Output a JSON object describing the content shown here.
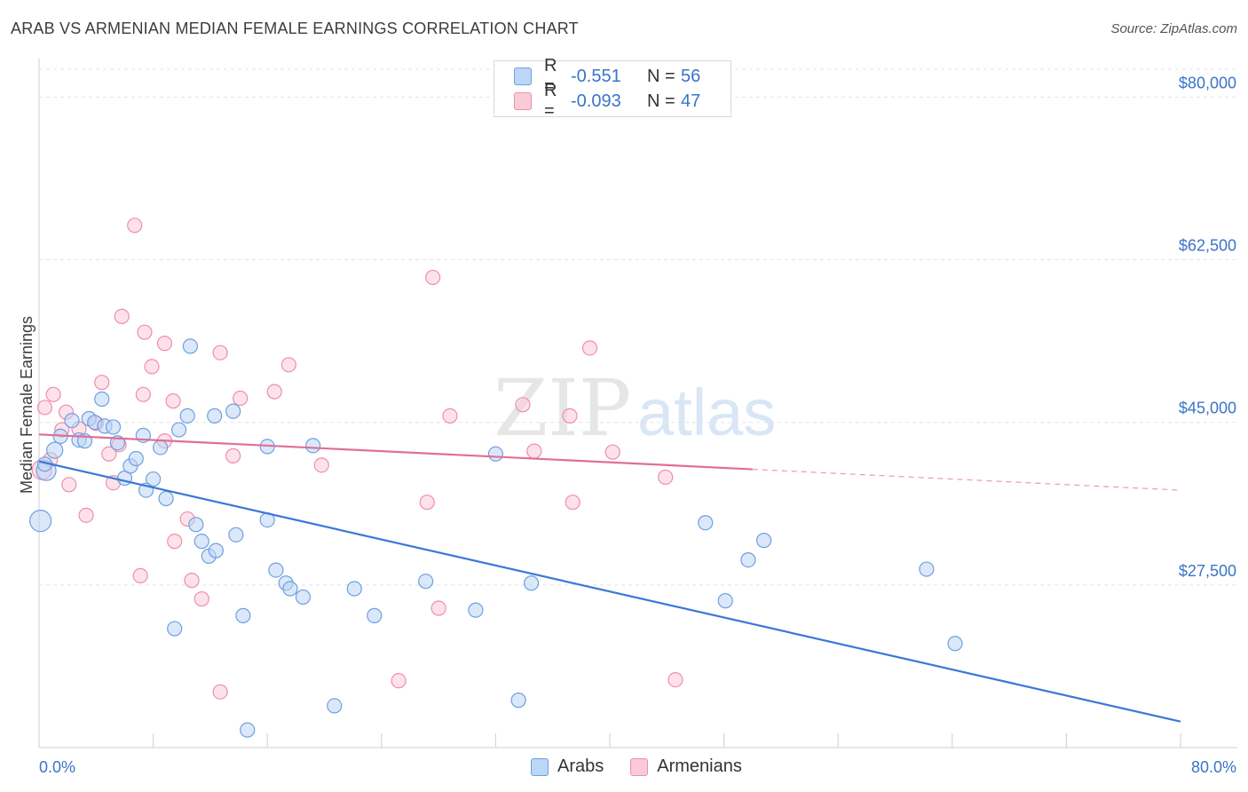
{
  "title": "ARAB VS ARMENIAN MEDIAN FEMALE EARNINGS CORRELATION CHART",
  "source": "Source: ZipAtlas.com",
  "watermark": {
    "zip": "ZIP",
    "atlas": "atlas"
  },
  "legend": {
    "r_label": "R =",
    "n_label": "N =",
    "arabs": {
      "r": "-0.551",
      "n": "56"
    },
    "armenians": {
      "r": "-0.093",
      "n": "47"
    }
  },
  "bottom_legend": {
    "arabs": "Arabs",
    "armenians": "Armenians"
  },
  "colors": {
    "blue_fill": "#bcd6f6",
    "blue_stroke": "#6fa0e0",
    "blue_line": "#3a78d6",
    "pink_fill": "#fbcad8",
    "pink_stroke": "#ee8eab",
    "pink_line": "#e06e98",
    "axis_text": "#3a74c8",
    "grid": "#e3e3e3"
  },
  "chart_data": {
    "type": "scatter",
    "title": "ARAB VS ARMENIAN MEDIAN FEMALE EARNINGS CORRELATION CHART",
    "xlabel": "",
    "ylabel": "Median Female Earnings",
    "xlim": [
      0,
      80
    ],
    "ylim": [
      10000,
      83000
    ],
    "x_tick_labels": [
      "0.0%",
      "80.0%"
    ],
    "y_ticks": [
      {
        "value": 27500,
        "label": "$27,500"
      },
      {
        "value": 45000,
        "label": "$45,000"
      },
      {
        "value": 62500,
        "label": "$62,500"
      },
      {
        "value": 80000,
        "label": "$80,000"
      }
    ],
    "grid": true,
    "series": [
      {
        "name": "Arabs",
        "r": -0.551,
        "n": 56,
        "trend": {
          "x1": 0,
          "y1": 40800,
          "x2": 80,
          "y2": 12800,
          "dashed_from": null
        },
        "points": [
          {
            "x": 0.1,
            "y": 34400,
            "s": 24
          },
          {
            "x": 0.5,
            "y": 39800,
            "s": 22
          },
          {
            "x": 1.1,
            "y": 42000,
            "s": 18
          },
          {
            "x": 1.5,
            "y": 43500,
            "s": 16
          },
          {
            "x": 2.3,
            "y": 45200,
            "s": 16
          },
          {
            "x": 2.8,
            "y": 43100,
            "s": 16
          },
          {
            "x": 3.2,
            "y": 43000,
            "s": 16
          },
          {
            "x": 3.5,
            "y": 45400,
            "s": 16
          },
          {
            "x": 3.9,
            "y": 45000,
            "s": 16
          },
          {
            "x": 4.4,
            "y": 47500,
            "s": 16
          },
          {
            "x": 4.6,
            "y": 44600,
            "s": 16
          },
          {
            "x": 5.2,
            "y": 44500,
            "s": 16
          },
          {
            "x": 5.5,
            "y": 42800,
            "s": 16
          },
          {
            "x": 6.0,
            "y": 39000,
            "s": 16
          },
          {
            "x": 6.4,
            "y": 40300,
            "s": 16
          },
          {
            "x": 6.8,
            "y": 41100,
            "s": 16
          },
          {
            "x": 7.5,
            "y": 37700,
            "s": 16
          },
          {
            "x": 7.3,
            "y": 43600,
            "s": 16
          },
          {
            "x": 8.0,
            "y": 38900,
            "s": 16
          },
          {
            "x": 8.5,
            "y": 42300,
            "s": 16
          },
          {
            "x": 8.9,
            "y": 36800,
            "s": 16
          },
          {
            "x": 9.5,
            "y": 22800,
            "s": 16
          },
          {
            "x": 9.8,
            "y": 44200,
            "s": 16
          },
          {
            "x": 10.4,
            "y": 45700,
            "s": 16
          },
          {
            "x": 10.6,
            "y": 53200,
            "s": 16
          },
          {
            "x": 11.0,
            "y": 34000,
            "s": 16
          },
          {
            "x": 11.4,
            "y": 32200,
            "s": 16
          },
          {
            "x": 11.9,
            "y": 30600,
            "s": 16
          },
          {
            "x": 12.4,
            "y": 31200,
            "s": 16
          },
          {
            "x": 12.3,
            "y": 45700,
            "s": 16
          },
          {
            "x": 13.6,
            "y": 46200,
            "s": 16
          },
          {
            "x": 13.8,
            "y": 32900,
            "s": 16
          },
          {
            "x": 14.3,
            "y": 24200,
            "s": 16
          },
          {
            "x": 14.6,
            "y": 11900,
            "s": 16
          },
          {
            "x": 16.0,
            "y": 34500,
            "s": 16
          },
          {
            "x": 16.0,
            "y": 42400,
            "s": 16
          },
          {
            "x": 16.6,
            "y": 29100,
            "s": 16
          },
          {
            "x": 17.3,
            "y": 27700,
            "s": 16
          },
          {
            "x": 17.6,
            "y": 27100,
            "s": 16
          },
          {
            "x": 18.5,
            "y": 26200,
            "s": 16
          },
          {
            "x": 19.2,
            "y": 42500,
            "s": 16
          },
          {
            "x": 20.7,
            "y": 14500,
            "s": 16
          },
          {
            "x": 22.1,
            "y": 27100,
            "s": 16
          },
          {
            "x": 23.5,
            "y": 24200,
            "s": 16
          },
          {
            "x": 27.1,
            "y": 27900,
            "s": 16
          },
          {
            "x": 30.6,
            "y": 24800,
            "s": 16
          },
          {
            "x": 32.0,
            "y": 41600,
            "s": 16
          },
          {
            "x": 33.6,
            "y": 15100,
            "s": 16
          },
          {
            "x": 34.5,
            "y": 27700,
            "s": 16
          },
          {
            "x": 46.7,
            "y": 34200,
            "s": 16
          },
          {
            "x": 49.7,
            "y": 30200,
            "s": 16
          },
          {
            "x": 50.8,
            "y": 32300,
            "s": 16
          },
          {
            "x": 48.1,
            "y": 25800,
            "s": 16
          },
          {
            "x": 62.2,
            "y": 29200,
            "s": 16
          },
          {
            "x": 64.2,
            "y": 21200,
            "s": 16
          },
          {
            "x": 0.4,
            "y": 40500,
            "s": 16
          }
        ]
      },
      {
        "name": "Armenians",
        "r": -0.093,
        "n": 47,
        "trend": {
          "x1": 0,
          "y1": 43700,
          "x2": 80,
          "y2": 37700,
          "dashed_from": 50
        },
        "points": [
          {
            "x": 0.2,
            "y": 39900,
            "s": 22
          },
          {
            "x": 0.4,
            "y": 46600,
            "s": 16
          },
          {
            "x": 1.0,
            "y": 48000,
            "s": 16
          },
          {
            "x": 1.6,
            "y": 44200,
            "s": 16
          },
          {
            "x": 1.9,
            "y": 46100,
            "s": 16
          },
          {
            "x": 2.1,
            "y": 38300,
            "s": 16
          },
          {
            "x": 2.8,
            "y": 44300,
            "s": 16
          },
          {
            "x": 3.3,
            "y": 35000,
            "s": 16
          },
          {
            "x": 4.0,
            "y": 44900,
            "s": 16
          },
          {
            "x": 4.4,
            "y": 49300,
            "s": 16
          },
          {
            "x": 4.9,
            "y": 41600,
            "s": 16
          },
          {
            "x": 5.2,
            "y": 38500,
            "s": 16
          },
          {
            "x": 5.6,
            "y": 42600,
            "s": 16
          },
          {
            "x": 6.7,
            "y": 66200,
            "s": 16
          },
          {
            "x": 5.8,
            "y": 56400,
            "s": 16
          },
          {
            "x": 7.1,
            "y": 28500,
            "s": 16
          },
          {
            "x": 7.3,
            "y": 48000,
            "s": 16
          },
          {
            "x": 7.4,
            "y": 54700,
            "s": 16
          },
          {
            "x": 7.9,
            "y": 51000,
            "s": 16
          },
          {
            "x": 8.8,
            "y": 53500,
            "s": 16
          },
          {
            "x": 8.8,
            "y": 43000,
            "s": 16
          },
          {
            "x": 9.4,
            "y": 47300,
            "s": 16
          },
          {
            "x": 9.5,
            "y": 32200,
            "s": 16
          },
          {
            "x": 10.4,
            "y": 34600,
            "s": 16
          },
          {
            "x": 10.7,
            "y": 28000,
            "s": 16
          },
          {
            "x": 11.4,
            "y": 26000,
            "s": 16
          },
          {
            "x": 12.7,
            "y": 16000,
            "s": 16
          },
          {
            "x": 12.7,
            "y": 52500,
            "s": 16
          },
          {
            "x": 13.6,
            "y": 41400,
            "s": 16
          },
          {
            "x": 14.1,
            "y": 47600,
            "s": 16
          },
          {
            "x": 16.5,
            "y": 48300,
            "s": 16
          },
          {
            "x": 17.5,
            "y": 51200,
            "s": 16
          },
          {
            "x": 19.8,
            "y": 40400,
            "s": 16
          },
          {
            "x": 25.2,
            "y": 17200,
            "s": 16
          },
          {
            "x": 27.2,
            "y": 36400,
            "s": 16
          },
          {
            "x": 27.6,
            "y": 60600,
            "s": 16
          },
          {
            "x": 28.0,
            "y": 25000,
            "s": 16
          },
          {
            "x": 28.8,
            "y": 45700,
            "s": 16
          },
          {
            "x": 33.9,
            "y": 46900,
            "s": 16
          },
          {
            "x": 34.7,
            "y": 41900,
            "s": 16
          },
          {
            "x": 37.2,
            "y": 45700,
            "s": 16
          },
          {
            "x": 37.4,
            "y": 36400,
            "s": 16
          },
          {
            "x": 38.6,
            "y": 53000,
            "s": 16
          },
          {
            "x": 40.2,
            "y": 41800,
            "s": 16
          },
          {
            "x": 43.9,
            "y": 39100,
            "s": 16
          },
          {
            "x": 44.6,
            "y": 17300,
            "s": 16
          },
          {
            "x": 0.8,
            "y": 41000,
            "s": 16
          }
        ]
      }
    ]
  }
}
